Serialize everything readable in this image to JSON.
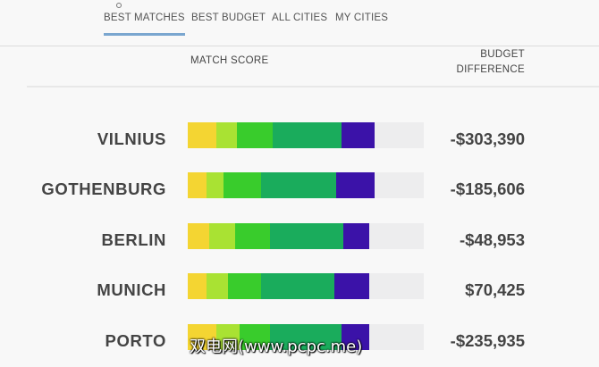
{
  "tabs": [
    {
      "label": "BEST MATCHES",
      "active": true
    },
    {
      "label": "BEST BUDGET",
      "active": false
    },
    {
      "label": "ALL CITIES",
      "active": false
    },
    {
      "label": "MY CITIES",
      "active": false
    }
  ],
  "columns": {
    "match_score": "MATCH SCORE",
    "budget_line1": "BUDGET",
    "budget_line2": "DIFFERENCE"
  },
  "colors": {
    "yellow": "#f4d532",
    "lime": "#a9e233",
    "green": "#39cc2c",
    "teal": "#1aac5c",
    "indigo": "#3b12a8",
    "empty": "#ededee"
  },
  "rows": [
    {
      "city": "VILNIUS",
      "difference": "-$303,390",
      "segments": [
        0.12,
        0.09,
        0.15,
        0.29,
        0.14
      ]
    },
    {
      "city": "GOTHENBURG",
      "difference": "-$185,606",
      "segments": [
        0.08,
        0.07,
        0.16,
        0.32,
        0.16
      ]
    },
    {
      "city": "BERLIN",
      "difference": "-$48,953",
      "segments": [
        0.09,
        0.11,
        0.15,
        0.31,
        0.11
      ]
    },
    {
      "city": "MUNICH",
      "difference": "$70,425",
      "segments": [
        0.08,
        0.09,
        0.14,
        0.31,
        0.15
      ]
    },
    {
      "city": "PORTO",
      "difference": "-$235,935",
      "segments": [
        0.12,
        0.1,
        0.13,
        0.3,
        0.12
      ]
    }
  ],
  "watermark": "双电网(www.pcpc.me)"
}
